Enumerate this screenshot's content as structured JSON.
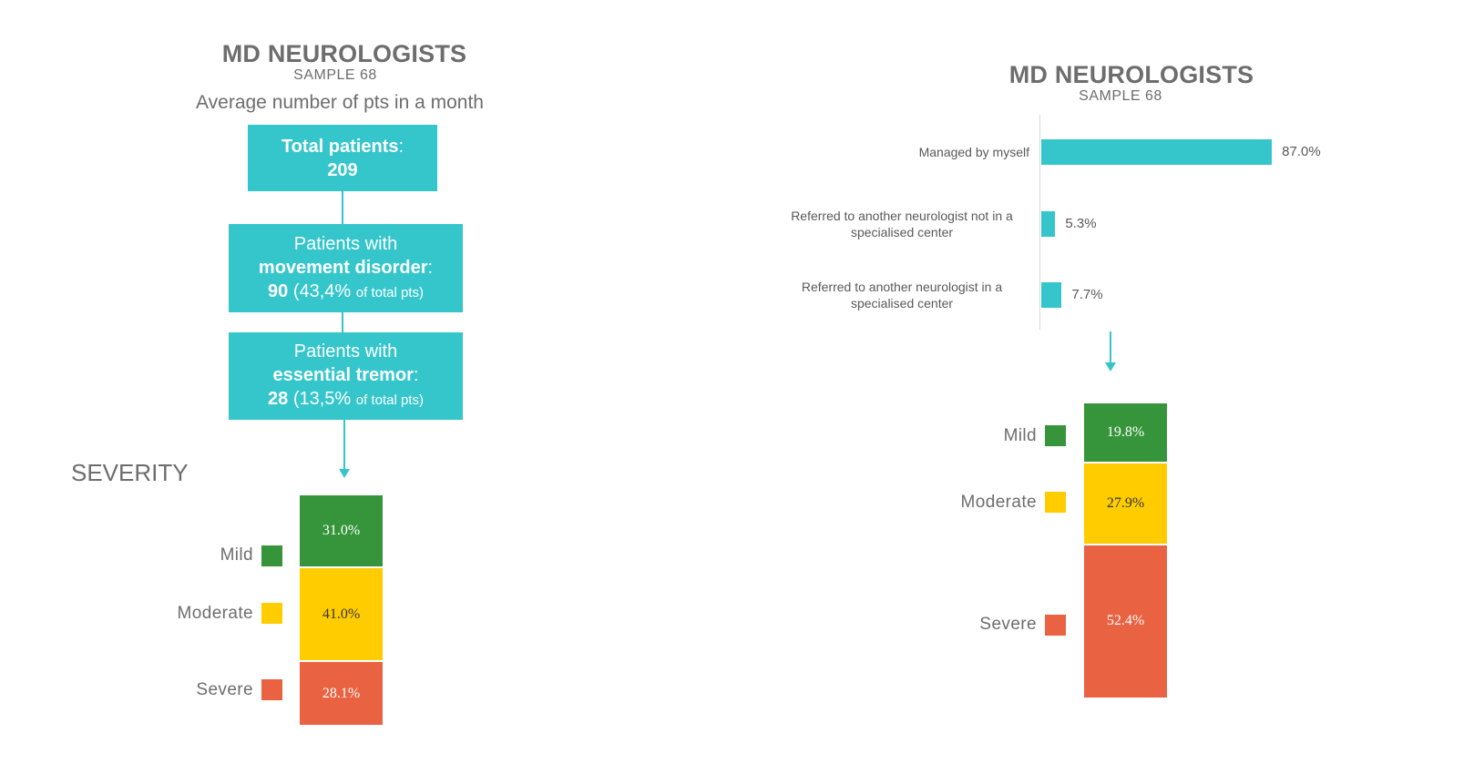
{
  "colors": {
    "teal": "#35c6cc",
    "mild": "#36953a",
    "moderate": "#ffcc00",
    "severe": "#e96342"
  },
  "left": {
    "title": "MD NEUROLOGISTS",
    "subtitle": "SAMPLE 68",
    "heading": "Average number of pts in a month",
    "total_box": {
      "label": "Total patients",
      "sep": ":",
      "value": "209"
    },
    "movement_box": {
      "line1": "Patients with",
      "bold": "movement disorder",
      "sep": ":",
      "value": "90",
      "pct": "(43,4%",
      "pct_note": "of total pts)"
    },
    "tremor_box": {
      "line1": "Patients with",
      "bold": "essential tremor",
      "sep": ":",
      "value": "28",
      "pct": "(13,5%",
      "pct_note": "of total pts)"
    },
    "severity_title": "SEVERITY"
  },
  "right": {
    "title": "MD NEUROLOGISTS",
    "subtitle": "SAMPLE 68"
  },
  "chart_data": [
    {
      "type": "bar",
      "orientation": "horizontal",
      "title": "MD NEUROLOGISTS",
      "categories": [
        "Managed by myself",
        "Referred to another neurologist not in a specialised center",
        "Referred to another neurologist in a specialised center"
      ],
      "category_lines": [
        [
          "Managed by myself"
        ],
        [
          "Referred to another neurologist not in a",
          "specialised center"
        ],
        [
          "Referred to another neurologist in a",
          "specialised center"
        ]
      ],
      "values": [
        87.0,
        5.3,
        7.7
      ],
      "labels": [
        "87.0%",
        "5.3%",
        "7.7%"
      ],
      "xlim": [
        0,
        100
      ]
    },
    {
      "type": "bar",
      "stacked": true,
      "title": "SEVERITY",
      "series": [
        {
          "name": "Mild",
          "value": 31.0,
          "label": "31.0%"
        },
        {
          "name": "Moderate",
          "value": 41.0,
          "label": "41.0%"
        },
        {
          "name": "Severe",
          "value": 28.1,
          "label": "28.1%"
        }
      ]
    },
    {
      "type": "bar",
      "stacked": true,
      "series": [
        {
          "name": "Mild",
          "value": 19.8,
          "label": "19.8%"
        },
        {
          "name": "Moderate",
          "value": 27.9,
          "label": "27.9%"
        },
        {
          "name": "Severe",
          "value": 52.4,
          "label": "52.4%"
        }
      ]
    }
  ]
}
